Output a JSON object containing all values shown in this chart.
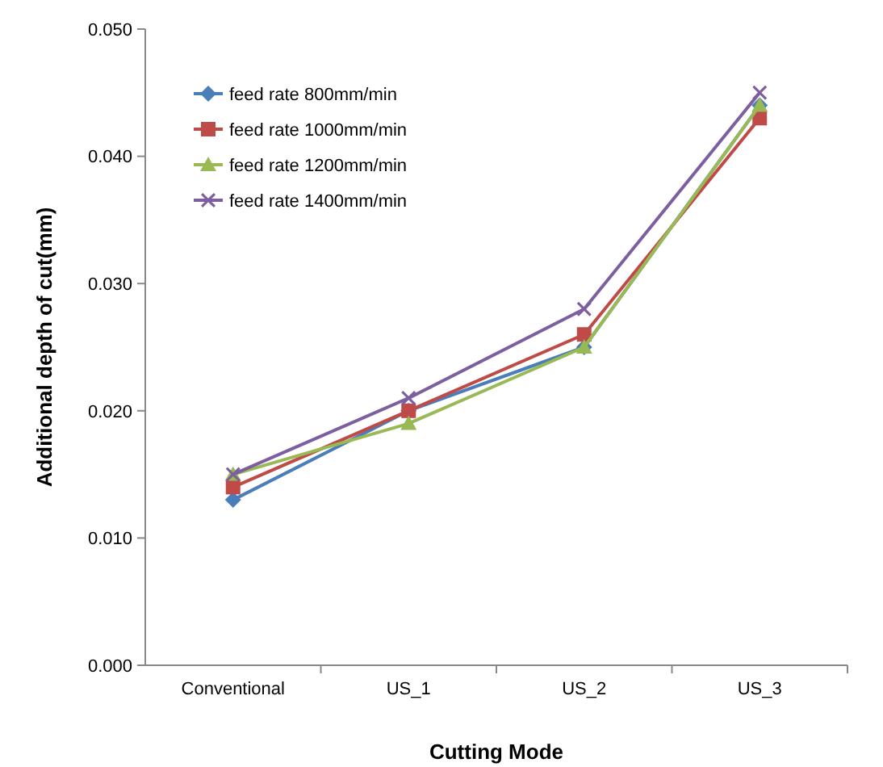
{
  "chart_data": {
    "type": "line",
    "xlabel": "Cutting Mode",
    "ylabel": "Additional depth of cut(mm)",
    "categories": [
      "Conventional",
      "US_1",
      "US_2",
      "US_3"
    ],
    "series": [
      {
        "name": "feed rate 800mm/min",
        "color": "#4a7ebb",
        "marker": "diamond",
        "values": [
          0.013,
          0.02,
          0.025,
          0.044
        ]
      },
      {
        "name": "feed rate 1000mm/min",
        "color": "#be4b48",
        "marker": "square",
        "values": [
          0.014,
          0.02,
          0.026,
          0.043
        ]
      },
      {
        "name": "feed rate 1200mm/min",
        "color": "#98b954",
        "marker": "triangle",
        "values": [
          0.015,
          0.019,
          0.025,
          0.044
        ]
      },
      {
        "name": "feed rate 1400mm/min",
        "color": "#7d5fa0",
        "marker": "cross",
        "values": [
          0.015,
          0.021,
          0.028,
          0.045
        ]
      }
    ],
    "ylim": [
      0,
      0.05
    ],
    "yticks": [
      {
        "value": 0,
        "label": "0.000"
      },
      {
        "value": 0.01,
        "label": "0.010"
      },
      {
        "value": 0.02,
        "label": "0.020"
      },
      {
        "value": 0.03,
        "label": "0.030"
      },
      {
        "value": 0.04,
        "label": "0.040"
      },
      {
        "value": 0.05,
        "label": "0.050"
      }
    ],
    "grid": false,
    "legend": "top left",
    "line_style": "solid"
  }
}
